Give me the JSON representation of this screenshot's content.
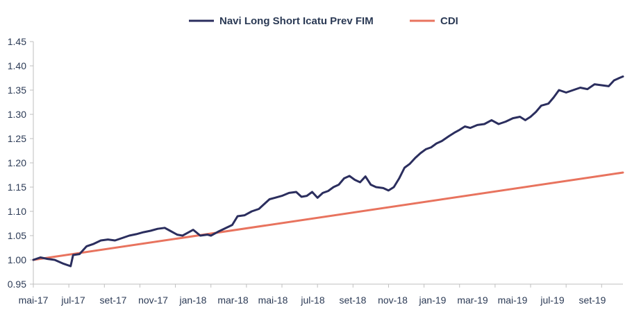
{
  "chart_data": {
    "type": "line",
    "title": "",
    "xlabel": "",
    "ylabel": "",
    "ylim": [
      0.95,
      1.45
    ],
    "yticks": [
      "0.95",
      "1.00",
      "1.05",
      "1.10",
      "1.15",
      "1.20",
      "1.25",
      "1.30",
      "1.35",
      "1.40",
      "1.45"
    ],
    "xticks": [
      "mai-17",
      "jul-17",
      "set-17",
      "nov-17",
      "jan-18",
      "mar-18",
      "mai-18",
      "jul-18",
      "set-18",
      "nov-18",
      "jan-19",
      "mar-19",
      "mai-19",
      "jul-19",
      "set-19"
    ],
    "grid": false,
    "legend": "top-center",
    "series": [
      {
        "name": "Navi Long Short Icatu Prev FIM",
        "color": "#2b2e5e",
        "points": [
          [
            0,
            1.0
          ],
          [
            0.2,
            1.005
          ],
          [
            0.4,
            1.002
          ],
          [
            0.6,
            1.0
          ],
          [
            0.85,
            0.992
          ],
          [
            1.05,
            0.987
          ],
          [
            1.12,
            1.01
          ],
          [
            1.3,
            1.012
          ],
          [
            1.5,
            1.028
          ],
          [
            1.7,
            1.033
          ],
          [
            1.9,
            1.04
          ],
          [
            2.1,
            1.042
          ],
          [
            2.3,
            1.04
          ],
          [
            2.5,
            1.045
          ],
          [
            2.7,
            1.05
          ],
          [
            2.9,
            1.053
          ],
          [
            3.1,
            1.057
          ],
          [
            3.3,
            1.06
          ],
          [
            3.5,
            1.064
          ],
          [
            3.7,
            1.066
          ],
          [
            3.85,
            1.06
          ],
          [
            4.05,
            1.052
          ],
          [
            4.2,
            1.05
          ],
          [
            4.35,
            1.056
          ],
          [
            4.5,
            1.062
          ],
          [
            4.7,
            1.05
          ],
          [
            4.9,
            1.052
          ],
          [
            5.0,
            1.05
          ],
          [
            5.2,
            1.058
          ],
          [
            5.4,
            1.065
          ],
          [
            5.6,
            1.072
          ],
          [
            5.75,
            1.09
          ],
          [
            5.95,
            1.092
          ],
          [
            6.15,
            1.1
          ],
          [
            6.35,
            1.105
          ],
          [
            6.5,
            1.115
          ],
          [
            6.65,
            1.125
          ],
          [
            6.8,
            1.128
          ],
          [
            7.0,
            1.132
          ],
          [
            7.2,
            1.138
          ],
          [
            7.4,
            1.14
          ],
          [
            7.55,
            1.13
          ],
          [
            7.7,
            1.132
          ],
          [
            7.85,
            1.14
          ],
          [
            8.0,
            1.128
          ],
          [
            8.15,
            1.138
          ],
          [
            8.3,
            1.142
          ],
          [
            8.45,
            1.15
          ],
          [
            8.6,
            1.155
          ],
          [
            8.75,
            1.168
          ],
          [
            8.9,
            1.173
          ],
          [
            9.05,
            1.165
          ],
          [
            9.2,
            1.16
          ],
          [
            9.35,
            1.172
          ],
          [
            9.5,
            1.155
          ],
          [
            9.65,
            1.15
          ],
          [
            9.85,
            1.148
          ],
          [
            10.0,
            1.143
          ],
          [
            10.15,
            1.15
          ],
          [
            10.3,
            1.168
          ],
          [
            10.45,
            1.19
          ],
          [
            10.6,
            1.198
          ],
          [
            10.75,
            1.21
          ],
          [
            10.9,
            1.22
          ],
          [
            11.05,
            1.228
          ],
          [
            11.2,
            1.232
          ],
          [
            11.35,
            1.24
          ],
          [
            11.5,
            1.245
          ],
          [
            11.7,
            1.255
          ],
          [
            11.85,
            1.262
          ],
          [
            12.0,
            1.268
          ],
          [
            12.15,
            1.275
          ],
          [
            12.3,
            1.272
          ],
          [
            12.5,
            1.278
          ],
          [
            12.7,
            1.28
          ],
          [
            12.9,
            1.288
          ],
          [
            13.1,
            1.28
          ],
          [
            13.3,
            1.285
          ],
          [
            13.5,
            1.292
          ],
          [
            13.7,
            1.295
          ],
          [
            13.85,
            1.288
          ],
          [
            14.0,
            1.295
          ],
          [
            14.15,
            1.305
          ],
          [
            14.3,
            1.318
          ],
          [
            14.5,
            1.322
          ],
          [
            14.65,
            1.335
          ],
          [
            14.8,
            1.35
          ],
          [
            15.0,
            1.345
          ],
          [
            15.2,
            1.35
          ],
          [
            15.4,
            1.355
          ],
          [
            15.6,
            1.352
          ],
          [
            15.8,
            1.362
          ],
          [
            16.0,
            1.36
          ],
          [
            16.2,
            1.358
          ],
          [
            16.35,
            1.37
          ],
          [
            16.5,
            1.375
          ],
          [
            16.6,
            1.378
          ]
        ]
      },
      {
        "name": "CDI",
        "color": "#e8735e",
        "points": [
          [
            0,
            1.0
          ],
          [
            16.6,
            1.18
          ]
        ]
      }
    ]
  }
}
